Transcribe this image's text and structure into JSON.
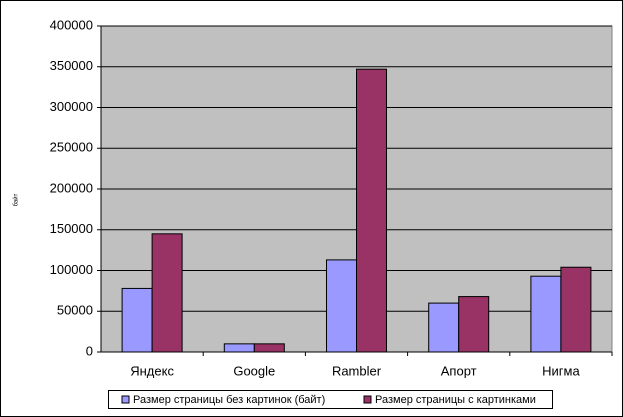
{
  "chart_data": {
    "type": "bar",
    "y_label": "байт",
    "categories": [
      "Яндекс",
      "Google",
      "Rambler",
      "Апорт",
      "Нигма"
    ],
    "series": [
      {
        "name": "Размер страницы без картинок (байт)",
        "color": "#9999ff",
        "values": [
          78000,
          10000,
          113000,
          60000,
          93000
        ]
      },
      {
        "name": "Размер страницы с картинками",
        "color": "#993366",
        "values": [
          145000,
          10000,
          347000,
          68000,
          104000
        ]
      }
    ],
    "ylim": [
      0,
      400000
    ],
    "yticks": [
      0,
      50000,
      100000,
      150000,
      200000,
      250000,
      300000,
      350000,
      400000
    ],
    "grid": true,
    "legend": "bottom"
  }
}
